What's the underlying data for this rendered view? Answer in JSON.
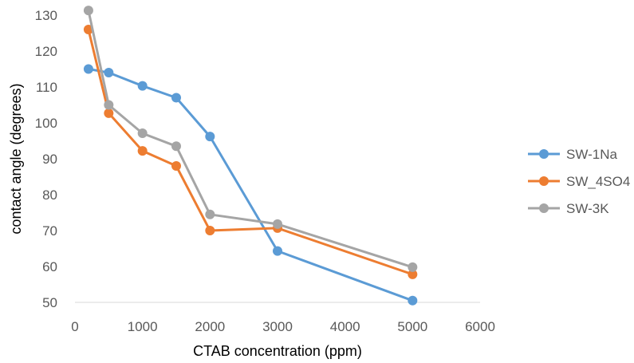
{
  "chart_data": {
    "type": "line",
    "title": "",
    "xlabel": "CTAB concentration (ppm)",
    "ylabel": "contact angle (degrees)",
    "xlim": [
      0,
      6000
    ],
    "ylim": [
      50,
      130
    ],
    "xticks": [
      "0",
      "1000",
      "2000",
      "3000",
      "4000",
      "5000",
      "6000"
    ],
    "yticks": [
      "50",
      "60",
      "70",
      "80",
      "90",
      "100",
      "110",
      "120",
      "130"
    ],
    "grid": false,
    "legend_position": "right",
    "x": [
      200,
      500,
      1000,
      1500,
      2000,
      3000,
      5000
    ],
    "series": [
      {
        "name": "SW-1Na",
        "color": "#5B9BD5",
        "values": [
          115,
          114,
          110.3,
          107,
          96.2,
          64.3,
          50.5
        ]
      },
      {
        "name": "SW_4SO4",
        "color": "#ED7D31",
        "values": [
          126,
          102.7,
          92.2,
          88,
          70,
          70.7,
          57.8
        ]
      },
      {
        "name": "SW-3K",
        "color": "#A5A5A5",
        "values": [
          131.3,
          105,
          97.1,
          93.5,
          74.5,
          71.8,
          59.8
        ]
      }
    ]
  }
}
